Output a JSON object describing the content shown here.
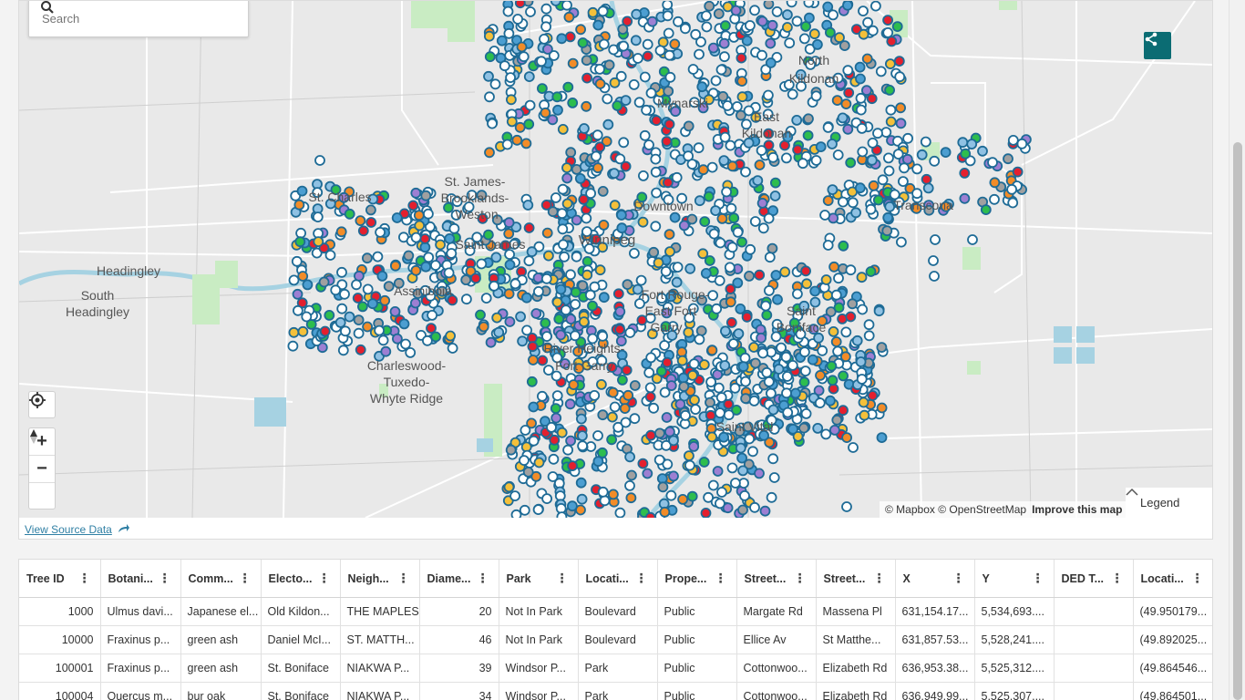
{
  "search": {
    "placeholder": "Search"
  },
  "map": {
    "labels": [
      "North Kildonan",
      "Mynarski",
      "East Kildonan",
      "St. Charles",
      "St. James-Brooklands-Weston",
      "Downtown",
      "Transcona",
      "Saint James",
      "Winnipeg",
      "Headingley",
      "South Headingley",
      "Assiniboia",
      "Fort Rouge-East Fort Garry",
      "River Heights-Fort Garry",
      "Saint Boniface",
      "Charleswood-Tuxedo-Whyte Ridge",
      "Saint Vital"
    ],
    "attribution": "© Mapbox © OpenStreetMap",
    "improve_link": "Improve this map",
    "legend_label": "Legend"
  },
  "colors": {
    "accent": "#0b6c73",
    "point_outline": "#1e6b96",
    "link": "#2f7fa4"
  },
  "icons": [
    "search-icon",
    "share-icon",
    "locate-icon",
    "zoom-in-icon",
    "zoom-out-icon",
    "compass-icon",
    "chevron-up-icon",
    "arrow-right-icon",
    "column-menu-icon"
  ],
  "source_link": "View Source Data",
  "table": {
    "columns": [
      "Tree ID",
      "Botani...",
      "Comm...",
      "Electo...",
      "Neigh...",
      "Diame...",
      "Park",
      "Locati...",
      "Prope...",
      "Street...",
      "Street...",
      "X",
      "Y",
      "DED T...",
      "Locati..."
    ],
    "rows": [
      [
        "1000",
        "Ulmus davi...",
        "Japanese el...",
        "Old Kildon...",
        "THE MAPLES",
        "20",
        "Not In Park",
        "Boulevard",
        "Public",
        "Margate Rd",
        "Massena Pl",
        "631,154.17...",
        "5,534,693....",
        "",
        "(49.950179..."
      ],
      [
        "10000",
        "Fraxinus p...",
        "green ash",
        "Daniel McI...",
        "ST. MATTH...",
        "46",
        "Not In Park",
        "Boulevard",
        "Public",
        "Ellice Av",
        "St Matthe...",
        "631,857.53...",
        "5,528,241....",
        "",
        "(49.892025..."
      ],
      [
        "100001",
        "Fraxinus p...",
        "green ash",
        "St. Boniface",
        "NIAKWA P...",
        "39",
        "Windsor P...",
        "Park",
        "Public",
        "Cottonwoo...",
        "Elizabeth Rd",
        "636,953.38...",
        "5,525,312....",
        "",
        "(49.864546..."
      ],
      [
        "100004",
        "Quercus m...",
        "bur oak",
        "St. Boniface",
        "NIAKWA P...",
        "34",
        "Windsor P...",
        "Park",
        "Public",
        "Cottonwoo...",
        "Elizabeth Rd",
        "636,949.99...",
        "5,525,307....",
        "",
        "(49.864501..."
      ]
    ]
  }
}
